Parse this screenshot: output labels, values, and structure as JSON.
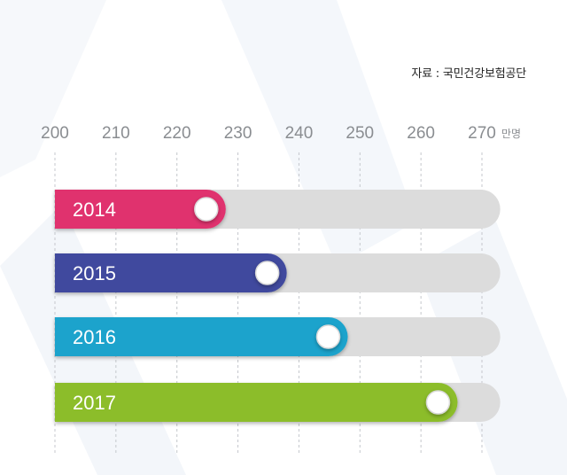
{
  "source": "자료 : 국민건강보험공단",
  "chart_data": {
    "type": "bar",
    "orientation": "horizontal",
    "categories": [
      "2014",
      "2015",
      "2016",
      "2017"
    ],
    "values": [
      228,
      238,
      248,
      266
    ],
    "colors": [
      "#e0306e",
      "#3f4a9e",
      "#1aa3cc",
      "#8cbd2c"
    ],
    "track_color": "#dcdcdc",
    "xlim": [
      200,
      270
    ],
    "x_max_track": 273,
    "x_ticks": [
      "200",
      "210",
      "220",
      "230",
      "240",
      "250",
      "260",
      "270"
    ],
    "x_unit": "만명",
    "grid": true
  }
}
